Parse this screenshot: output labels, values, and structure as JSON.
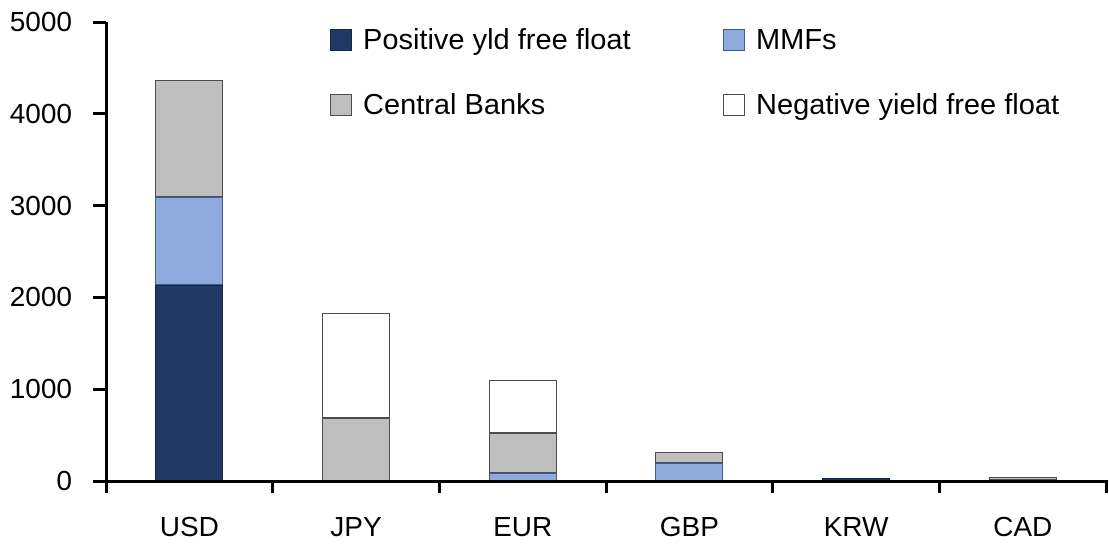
{
  "chart_data": {
    "type": "bar",
    "stacked": true,
    "categories": [
      "USD",
      "JPY",
      "EUR",
      "GBP",
      "KRW",
      "CAD"
    ],
    "series": [
      {
        "name": "Positive yld free float",
        "color": "#1F3864",
        "border": "#17263F",
        "values": [
          2150,
          0,
          0,
          0,
          45,
          25
        ]
      },
      {
        "name": "MMFs",
        "color": "#8FAADC",
        "border": "#3B5B96",
        "values": [
          950,
          0,
          100,
          210,
          0,
          0
        ]
      },
      {
        "name": "Central Banks",
        "color": "#BFBFBF",
        "border": "#4D4D4D",
        "values": [
          1280,
          700,
          430,
          120,
          0,
          30
        ]
      },
      {
        "name": "Negative yield free float",
        "color": "#FFFFFF",
        "border": "#4D4D4D",
        "values": [
          0,
          1140,
          580,
          0,
          0,
          0
        ]
      }
    ],
    "ylim": [
      0,
      5000
    ],
    "yticks": [
      0,
      1000,
      2000,
      3000,
      4000,
      5000
    ],
    "grid": false,
    "legend_position": "top",
    "axis_color": "#000000",
    "background_color": "#FFFFFF"
  }
}
